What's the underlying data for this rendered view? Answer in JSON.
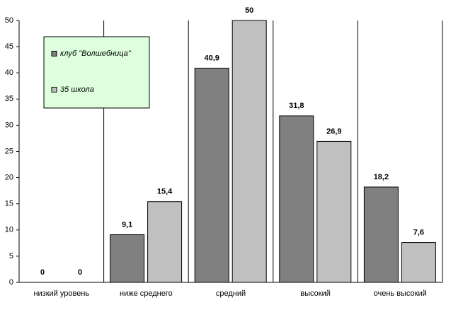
{
  "chart_data": {
    "type": "bar",
    "categories": [
      "низкий уровень",
      "ниже среднего",
      "средний",
      "высокий",
      "очень высокий"
    ],
    "series": [
      {
        "name": "клуб \"Волшебница\"",
        "color": "#808080",
        "values": [
          0,
          9.1,
          40.9,
          31.8,
          18.2
        ],
        "value_labels": [
          "0",
          "9,1",
          "40,9",
          "31,8",
          "18,2"
        ]
      },
      {
        "name": "35 школа",
        "color": "#c0c0c0",
        "values": [
          0,
          15.4,
          50,
          26.9,
          7.6
        ],
        "value_labels": [
          "0",
          "15,4",
          "50",
          "26,9",
          "7,6"
        ]
      }
    ],
    "ylim": [
      0,
      50
    ],
    "yticks": [
      0,
      5,
      10,
      15,
      20,
      25,
      30,
      35,
      40,
      45,
      50
    ],
    "legend": "top-left",
    "legend_color": "#ddffdd"
  }
}
